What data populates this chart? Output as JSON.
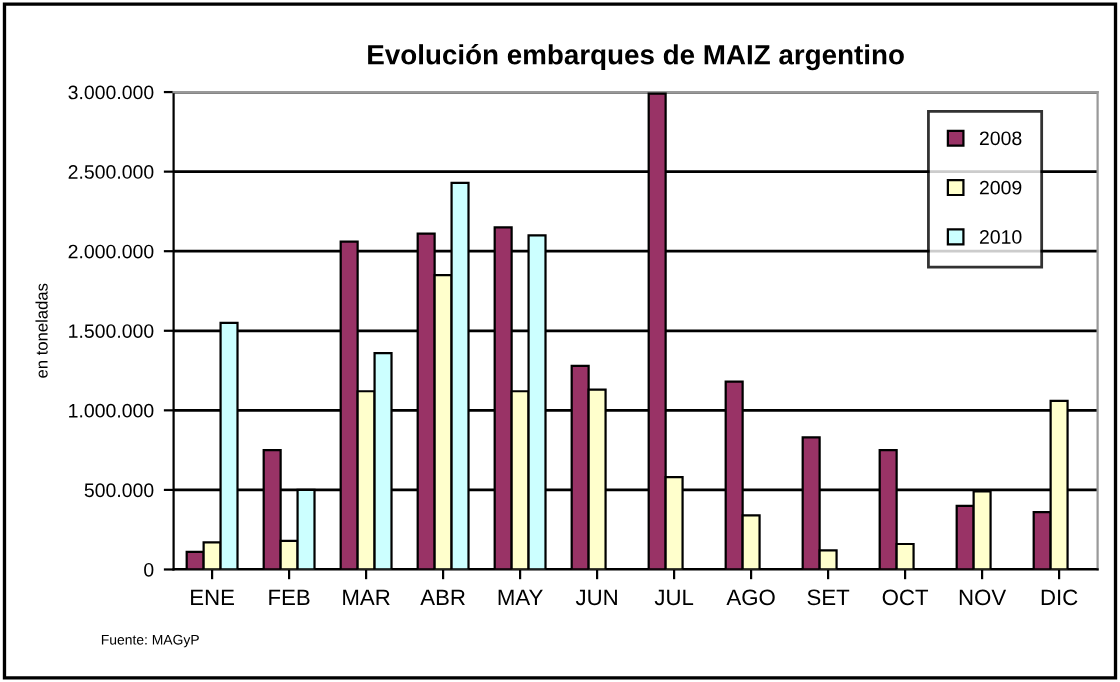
{
  "chart_data": {
    "type": "bar",
    "title": "Evolución embarques de MAIZ argentino",
    "ylabel": "en toneladas",
    "annotations": [
      "Fuente: MAGyP"
    ],
    "categories": [
      "ENE",
      "FEB",
      "MAR",
      "ABR",
      "MAY",
      "JUN",
      "JUL",
      "AGO",
      "SET",
      "OCT",
      "NOV",
      "DIC"
    ],
    "series": [
      {
        "name": "2008",
        "color": "#993366",
        "values": [
          110000,
          750000,
          2060000,
          2110000,
          2150000,
          1280000,
          2990000,
          1180000,
          830000,
          750000,
          400000,
          360000
        ]
      },
      {
        "name": "2009",
        "color": "#ffffcc",
        "values": [
          170000,
          180000,
          1120000,
          1850000,
          1120000,
          1130000,
          580000,
          340000,
          120000,
          160000,
          490000,
          1060000
        ]
      },
      {
        "name": "2010",
        "color": "#ccffff",
        "values": [
          1550000,
          500000,
          1360000,
          2430000,
          2100000,
          null,
          null,
          null,
          null,
          null,
          null,
          null
        ]
      }
    ],
    "ylim": [
      0,
      3000000
    ],
    "yticks": [
      {
        "value": 0,
        "label": "0"
      },
      {
        "value": 500000,
        "label": "500.000"
      },
      {
        "value": 1000000,
        "label": "1.000.000"
      },
      {
        "value": 1500000,
        "label": "1.500.000"
      },
      {
        "value": 2000000,
        "label": "2.000.000"
      },
      {
        "value": 2500000,
        "label": "2.500.000"
      },
      {
        "value": 3000000,
        "label": "3.000.000"
      }
    ],
    "grid": "y",
    "legend": "top right"
  }
}
